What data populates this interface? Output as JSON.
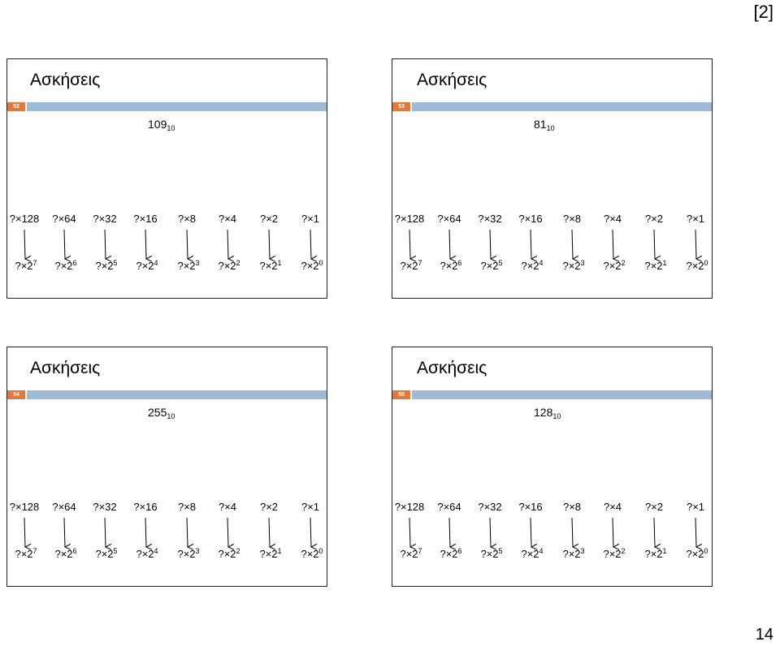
{
  "header": {
    "page_label": "[2]"
  },
  "footer": {
    "page_number": "14"
  },
  "colors": {
    "accent_orange": "#E0793A",
    "bar_blue": "#9DBAD6"
  },
  "row_top_labels": [
    "?×128",
    "?×64",
    "?×32",
    "?×16",
    "?×8",
    "?×4",
    "?×2",
    "?×1"
  ],
  "row_bottom_prefix": "?×2",
  "row_bottom_exponents": [
    "7",
    "6",
    "5",
    "4",
    "3",
    "2",
    "1",
    "0"
  ],
  "slides": [
    {
      "title": "Ασκήσεις",
      "slide_number": "52",
      "number": "109",
      "base": "10"
    },
    {
      "title": "Ασκήσεις",
      "slide_number": "53",
      "number": "81",
      "base": "10"
    },
    {
      "title": "Ασκήσεις",
      "slide_number": "54",
      "number": "255",
      "base": "10"
    },
    {
      "title": "Ασκήσεις",
      "slide_number": "55",
      "number": "128",
      "base": "10"
    }
  ]
}
